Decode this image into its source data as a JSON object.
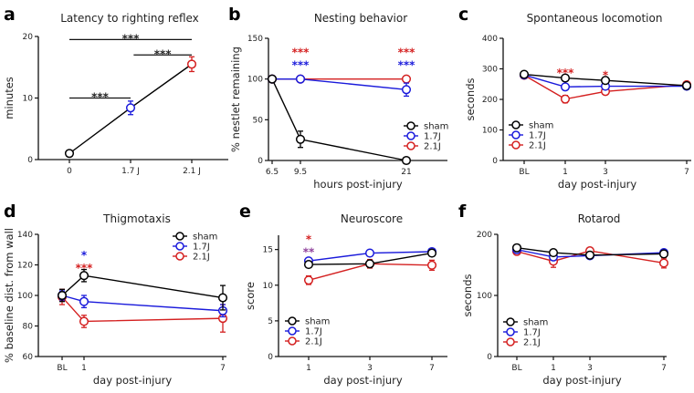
{
  "chart_data": [
    {
      "panel_label": "a",
      "type": "line",
      "title": "Latency to righting reflex",
      "xlabel": "",
      "ylabel": "minutes",
      "ylim": [
        0,
        20
      ],
      "yticks": [
        0,
        10,
        20
      ],
      "categories": [
        "0",
        "1.7 J",
        "2.1 J"
      ],
      "connector": {
        "color": "#000000",
        "values": [
          1.0,
          8.4,
          15.5
        ]
      },
      "series": [
        {
          "color": "#000000",
          "values": [
            1.0,
            null,
            null
          ],
          "errors": [
            0.2,
            null,
            null
          ]
        },
        {
          "color": "#1a1adb",
          "values": [
            null,
            8.4,
            null
          ],
          "errors": [
            null,
            1.1,
            null
          ]
        },
        {
          "color": "#d42020",
          "values": [
            null,
            null,
            15.5
          ],
          "errors": [
            null,
            null,
            1.2
          ]
        }
      ],
      "brackets": [
        {
          "from": 0,
          "to": 1,
          "y": 10,
          "text": "***"
        },
        {
          "from": 1.05,
          "to": 2,
          "y": 17,
          "text": "***"
        },
        {
          "from": 0,
          "to": 2,
          "y": 19.5,
          "text": "***"
        }
      ],
      "annotations": []
    },
    {
      "panel_label": "b",
      "type": "line",
      "title": "Nesting behavior",
      "xlabel": "hours post-injury",
      "ylabel": "% nestlet remaining",
      "ylim": [
        0,
        150
      ],
      "yticks": [
        0,
        50,
        100,
        150
      ],
      "categories": [
        "6.5",
        "9.5",
        "21"
      ],
      "series": [
        {
          "name": "sham",
          "color": "#000000",
          "values": [
            100,
            26,
            0
          ],
          "errors": [
            0,
            10,
            0
          ]
        },
        {
          "name": "1.7J",
          "color": "#1a1adb",
          "values": [
            100,
            100,
            87
          ],
          "errors": [
            0,
            0,
            8
          ]
        },
        {
          "name": "2.1J",
          "color": "#d42020",
          "values": [
            100,
            100,
            100
          ],
          "errors": [
            0,
            0,
            0
          ]
        }
      ],
      "legend": "bottom-right",
      "annotations": [
        {
          "x": 1,
          "y": 128,
          "text": "***",
          "color": "#d42020"
        },
        {
          "x": 1,
          "y": 119,
          "text": "***",
          "color": "#1a1adb"
        },
        {
          "x": 2,
          "y": 128,
          "text": "***",
          "color": "#d42020"
        },
        {
          "x": 2,
          "y": 119,
          "text": "***",
          "color": "#1a1adb"
        }
      ]
    },
    {
      "panel_label": "c",
      "type": "line",
      "title": "Spontaneous locomotion",
      "xlabel": "day post-injury",
      "ylabel": "seconds",
      "ylim": [
        0,
        400
      ],
      "yticks": [
        0,
        100,
        200,
        300,
        400
      ],
      "categories": [
        "BL",
        "1",
        "3",
        "7"
      ],
      "series": [
        {
          "name": "sham",
          "color": "#000000",
          "values": [
            282,
            270,
            262,
            245
          ],
          "errors": [
            4,
            4,
            4,
            5
          ]
        },
        {
          "name": "1.7J",
          "color": "#1a1adb",
          "values": [
            280,
            241,
            243,
            243
          ],
          "errors": [
            4,
            4,
            4,
            9
          ]
        },
        {
          "name": "2.1J",
          "color": "#d42020",
          "values": [
            279,
            201,
            226,
            248
          ],
          "errors": [
            4,
            12,
            10,
            5
          ]
        }
      ],
      "legend": "bottom-left",
      "annotations": [
        {
          "x": 1,
          "y": 292,
          "text": "***",
          "color": "#d42020"
        },
        {
          "x": 2,
          "y": 285,
          "text": "*",
          "color": "#d42020"
        }
      ]
    },
    {
      "panel_label": "d",
      "type": "line",
      "title": "Thigmotaxis",
      "xlabel": "day post-injury",
      "ylabel": "% baseline dist. from wall",
      "ylim": [
        60,
        140
      ],
      "yticks": [
        60,
        80,
        100,
        120,
        140
      ],
      "categories": [
        "BL",
        "1",
        "7"
      ],
      "series": [
        {
          "name": "sham",
          "color": "#000000",
          "values": [
            100,
            113,
            98.5
          ],
          "errors": [
            4,
            4,
            8
          ]
        },
        {
          "name": "1.7J",
          "color": "#1a1adb",
          "values": [
            100,
            96,
            90
          ],
          "errors": [
            3,
            4,
            4
          ]
        },
        {
          "name": "2.1J",
          "color": "#d42020",
          "values": [
            99,
            83,
            85
          ],
          "errors": [
            5,
            4,
            9
          ]
        }
      ],
      "legend": "top-right",
      "annotations": [
        {
          "x": 1,
          "y": 124,
          "text": "*",
          "color": "#1a1adb"
        },
        {
          "x": 1,
          "y": 119,
          "text": "***",
          "color": "#d42020"
        }
      ]
    },
    {
      "panel_label": "e",
      "type": "line",
      "title": "Neuroscore",
      "xlabel": "day post-injury",
      "ylabel": "score",
      "ylim": [
        0,
        17
      ],
      "yticks": [
        0,
        5,
        10,
        15
      ],
      "categories": [
        "1",
        "3",
        "7"
      ],
      "series": [
        {
          "name": "sham",
          "color": "#000000",
          "values": [
            12.9,
            13.0,
            14.5
          ],
          "errors": [
            0.3,
            0.3,
            0.3
          ]
        },
        {
          "name": "1.7J",
          "color": "#1a1adb",
          "values": [
            13.4,
            14.5,
            14.7
          ],
          "errors": [
            0.3,
            0.3,
            0.3
          ]
        },
        {
          "name": "2.1J",
          "color": "#d42020",
          "values": [
            10.7,
            13.0,
            12.8
          ],
          "errors": [
            0.6,
            0.6,
            0.7
          ]
        }
      ],
      "legend": "bottom-left",
      "annotations": [
        {
          "x": 0,
          "y": 15.9,
          "text": "*",
          "color": "#d42020"
        },
        {
          "x": 0,
          "y": 14.9,
          "text": "**",
          "color": "#8e3f9a"
        }
      ]
    },
    {
      "panel_label": "f",
      "type": "line",
      "title": "Rotarod",
      "xlabel": "day post-injury",
      "ylabel": "seconds",
      "ylim": [
        0,
        200
      ],
      "yticks": [
        0,
        100,
        200
      ],
      "categories": [
        "BL",
        "1",
        "3",
        "7"
      ],
      "series": [
        {
          "name": "sham",
          "color": "#000000",
          "values": [
            178,
            170,
            166,
            168
          ],
          "errors": [
            3,
            4,
            4,
            5
          ]
        },
        {
          "name": "1.7J",
          "color": "#1a1adb",
          "values": [
            175,
            163,
            165,
            170
          ],
          "errors": [
            3,
            5,
            4,
            5
          ]
        },
        {
          "name": "2.1J",
          "color": "#d42020",
          "values": [
            172,
            156,
            173,
            153
          ],
          "errors": [
            3,
            10,
            3,
            8
          ]
        }
      ],
      "legend": "bottom-left",
      "annotations": []
    }
  ]
}
